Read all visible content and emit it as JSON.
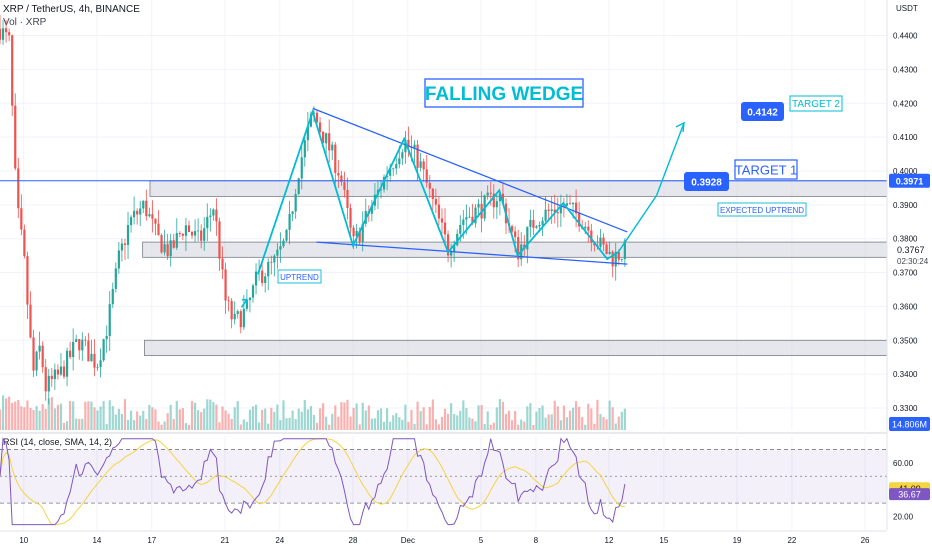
{
  "header": {
    "title": "XRP / TetherUS, 4h, BINANCE",
    "volume_label": "Vol · XRP",
    "currency": "USDT"
  },
  "annotations": {
    "title": "FALLING WEDGE",
    "target1": "TARGET 1",
    "target2": "TARGET 2",
    "target1_price": "0.3928",
    "target2_price": "0.4142",
    "expected": "EXPECTED UPTREND",
    "uptrend": "UPTREND"
  },
  "price_badges": {
    "level": "0.3971",
    "current": "0.3767",
    "countdown": "02:30:24",
    "volume": "14.806M"
  },
  "rsi_panel": {
    "label": "RSI (14, close, SMA, 14, 2)",
    "rsi_value": "36.67",
    "sma_value": "41.09",
    "ticks": [
      "60.00",
      "20.00"
    ]
  },
  "colors": {
    "candle_up": "#26a69a",
    "candle_down": "#ef5350",
    "wedge": "#2962ff",
    "path": "#00bcd4",
    "rsi": "#7e57c2",
    "rsi_sma": "#f5d442"
  },
  "chart_data": {
    "type": "candlestick",
    "symbol": "XRP / TetherUS",
    "timeframe": "4h",
    "y_ticks": [
      "0.4400",
      "0.4300",
      "0.4200",
      "0.4100",
      "0.4000",
      "0.3900",
      "0.3800",
      "0.3700",
      "0.3600",
      "0.3500",
      "0.3400",
      "0.3300"
    ],
    "x_ticks": [
      {
        "label": "10",
        "day": 0
      },
      {
        "label": "14",
        "day": 4
      },
      {
        "label": "17",
        "day": 7
      },
      {
        "label": "21",
        "day": 11
      },
      {
        "label": "24",
        "day": 14
      },
      {
        "label": "28",
        "day": 18
      },
      {
        "label": "Dec",
        "day": 21
      },
      {
        "label": "5",
        "day": 25
      },
      {
        "label": "8",
        "day": 28
      },
      {
        "label": "12",
        "day": 32
      },
      {
        "label": "15",
        "day": 35
      },
      {
        "label": "19",
        "day": 39
      },
      {
        "label": "22",
        "day": 42
      },
      {
        "label": "26",
        "day": 46
      }
    ],
    "ylim": [
      0.3235,
      0.4505
    ],
    "xlim_days": [
      -1.3,
      47.2
    ],
    "horizontal_level": 0.3971,
    "zones": [
      [
        0.3925,
        0.3971
      ],
      [
        0.3745,
        0.379
      ],
      [
        0.3455,
        0.35
      ]
    ],
    "wedge_upper": [
      [
        15.8,
        0.4185
      ],
      [
        33.0,
        0.382
      ]
    ],
    "wedge_lower": [
      [
        16.0,
        0.379
      ],
      [
        33.0,
        0.3725
      ]
    ],
    "wave_path": [
      [
        12.8,
        0.3695
      ],
      [
        15.8,
        0.4175
      ],
      [
        18.0,
        0.378
      ],
      [
        20.8,
        0.4095
      ],
      [
        23.2,
        0.376
      ],
      [
        26.0,
        0.3943
      ],
      [
        27.0,
        0.375
      ],
      [
        29.5,
        0.3905
      ],
      [
        31.9,
        0.374
      ],
      [
        32.5,
        0.376
      ],
      [
        36.1,
        0.4142
      ]
    ],
    "target_projection_points": [
      [
        32.5,
        0.376
      ],
      [
        34.6,
        0.3928
      ],
      [
        36.1,
        0.4142
      ]
    ],
    "rsi_ylim": [
      10,
      80
    ],
    "rsi_levels": [
      70,
      50,
      30
    ],
    "anchors": [
      [
        -1.3,
        0.442
      ],
      [
        -0.8,
        0.438
      ],
      [
        -0.4,
        0.39
      ],
      [
        0.0,
        0.375
      ],
      [
        0.5,
        0.34
      ],
      [
        0.9,
        0.348
      ],
      [
        1.2,
        0.336
      ],
      [
        2.0,
        0.34
      ],
      [
        3.0,
        0.35
      ],
      [
        4.0,
        0.343
      ],
      [
        4.6,
        0.355
      ],
      [
        5.2,
        0.374
      ],
      [
        5.8,
        0.385
      ],
      [
        6.6,
        0.39
      ],
      [
        7.3,
        0.38
      ],
      [
        8.0,
        0.376
      ],
      [
        8.8,
        0.384
      ],
      [
        9.6,
        0.379
      ],
      [
        10.4,
        0.39
      ],
      [
        11.0,
        0.362
      ],
      [
        11.5,
        0.355
      ],
      [
        12.2,
        0.359
      ],
      [
        12.8,
        0.369
      ],
      [
        13.6,
        0.372
      ],
      [
        14.4,
        0.38
      ],
      [
        15.0,
        0.4
      ],
      [
        15.8,
        0.417
      ],
      [
        16.6,
        0.408
      ],
      [
        17.3,
        0.399
      ],
      [
        18.0,
        0.378
      ],
      [
        18.9,
        0.388
      ],
      [
        19.8,
        0.399
      ],
      [
        20.8,
        0.409
      ],
      [
        21.6,
        0.403
      ],
      [
        22.4,
        0.39
      ],
      [
        23.2,
        0.377
      ],
      [
        24.0,
        0.386
      ],
      [
        25.0,
        0.389
      ],
      [
        26.0,
        0.393
      ],
      [
        27.0,
        0.376
      ],
      [
        28.0,
        0.386
      ],
      [
        29.5,
        0.39
      ],
      [
        30.5,
        0.386
      ],
      [
        31.5,
        0.378
      ],
      [
        32.2,
        0.3745
      ],
      [
        32.9,
        0.3765
      ]
    ]
  }
}
